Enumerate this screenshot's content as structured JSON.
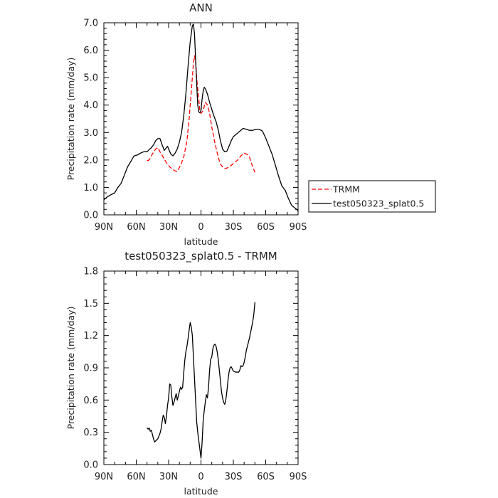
{
  "chart_data": [
    {
      "type": "line",
      "title": "ANN",
      "xlabel": "latitude",
      "ylabel": "Precipitation rate (mm/day)",
      "xlim": [
        90,
        -90
      ],
      "ylim": [
        0,
        7
      ],
      "x_ticks": [
        90,
        60,
        30,
        0,
        -30,
        -60,
        -90
      ],
      "x_tick_labels": [
        "90N",
        "60N",
        "30N",
        "0",
        "30S",
        "60S",
        "90S"
      ],
      "y_ticks": [
        0,
        1,
        2,
        3,
        4,
        5,
        6,
        7
      ],
      "y_tick_labels": [
        "0.0",
        "1.0",
        "2.0",
        "3.0",
        "4.0",
        "5.0",
        "6.0",
        "7.0"
      ],
      "grid": false,
      "legend_position": "right",
      "series": [
        {
          "name": "TRMM",
          "color": "#ff0000",
          "dashed": true,
          "points": [
            [
              50,
              1.97
            ],
            [
              48,
              2.0
            ],
            [
              45,
              2.22
            ],
            [
              42,
              2.4
            ],
            [
              40,
              2.45
            ],
            [
              38,
              2.3
            ],
            [
              35,
              2.1
            ],
            [
              32,
              1.9
            ],
            [
              29,
              1.75
            ],
            [
              26,
              1.65
            ],
            [
              24,
              1.6
            ],
            [
              22,
              1.58
            ],
            [
              19,
              1.8
            ],
            [
              16,
              2.1
            ],
            [
              13,
              2.7
            ],
            [
              11,
              3.5
            ],
            [
              9,
              4.5
            ],
            [
              7,
              5.5
            ],
            [
              6,
              5.8
            ],
            [
              5,
              5.6
            ],
            [
              4,
              5.0
            ],
            [
              2,
              4.2
            ],
            [
              1,
              3.8
            ],
            [
              0,
              3.7
            ],
            [
              -2,
              3.8
            ],
            [
              -4,
              4.1
            ],
            [
              -6,
              4.0
            ],
            [
              -8,
              3.7
            ],
            [
              -10,
              3.2
            ],
            [
              -13,
              2.6
            ],
            [
              -16,
              2.1
            ],
            [
              -18,
              1.85
            ],
            [
              -20,
              1.75
            ],
            [
              -22,
              1.68
            ],
            [
              -25,
              1.72
            ],
            [
              -28,
              1.8
            ],
            [
              -31,
              1.9
            ],
            [
              -34,
              2.0
            ],
            [
              -37,
              2.15
            ],
            [
              -40,
              2.25
            ],
            [
              -43,
              2.2
            ],
            [
              -45,
              2.1
            ],
            [
              -47,
              1.85
            ],
            [
              -50,
              1.55
            ]
          ]
        },
        {
          "name": "test050323_splat0.5",
          "color": "#000000",
          "dashed": false,
          "points": [
            [
              90,
              0.55
            ],
            [
              87,
              0.65
            ],
            [
              84,
              0.72
            ],
            [
              80,
              0.8
            ],
            [
              77,
              1.0
            ],
            [
              74,
              1.15
            ],
            [
              71,
              1.45
            ],
            [
              68,
              1.75
            ],
            [
              65,
              1.95
            ],
            [
              62,
              2.15
            ],
            [
              59,
              2.18
            ],
            [
              56,
              2.25
            ],
            [
              53,
              2.3
            ],
            [
              50,
              2.3
            ],
            [
              48,
              2.38
            ],
            [
              46,
              2.45
            ],
            [
              44,
              2.55
            ],
            [
              42,
              2.7
            ],
            [
              40,
              2.78
            ],
            [
              38,
              2.78
            ],
            [
              36,
              2.55
            ],
            [
              34,
              2.35
            ],
            [
              33,
              2.4
            ],
            [
              31,
              2.5
            ],
            [
              30,
              2.4
            ],
            [
              28,
              2.22
            ],
            [
              26,
              2.15
            ],
            [
              24,
              2.25
            ],
            [
              22,
              2.4
            ],
            [
              20,
              2.65
            ],
            [
              18,
              3.0
            ],
            [
              16,
              3.6
            ],
            [
              14,
              4.4
            ],
            [
              12,
              5.4
            ],
            [
              10,
              6.3
            ],
            [
              8,
              6.9
            ],
            [
              7,
              6.95
            ],
            [
              6,
              6.6
            ],
            [
              5,
              5.7
            ],
            [
              4,
              4.8
            ],
            [
              3,
              4.0
            ],
            [
              2,
              3.75
            ],
            [
              1,
              3.72
            ],
            [
              0,
              3.8
            ],
            [
              -1,
              4.2
            ],
            [
              -2,
              4.5
            ],
            [
              -3,
              4.65
            ],
            [
              -4,
              4.6
            ],
            [
              -6,
              4.4
            ],
            [
              -8,
              4.1
            ],
            [
              -10,
              3.85
            ],
            [
              -12,
              3.6
            ],
            [
              -14,
              3.4
            ],
            [
              -16,
              3.1
            ],
            [
              -18,
              2.7
            ],
            [
              -20,
              2.4
            ],
            [
              -22,
              2.3
            ],
            [
              -24,
              2.32
            ],
            [
              -26,
              2.5
            ],
            [
              -28,
              2.7
            ],
            [
              -30,
              2.85
            ],
            [
              -33,
              2.95
            ],
            [
              -36,
              3.05
            ],
            [
              -39,
              3.15
            ],
            [
              -42,
              3.12
            ],
            [
              -45,
              3.08
            ],
            [
              -48,
              3.08
            ],
            [
              -51,
              3.12
            ],
            [
              -54,
              3.12
            ],
            [
              -57,
              3.05
            ],
            [
              -60,
              2.8
            ],
            [
              -63,
              2.5
            ],
            [
              -66,
              2.2
            ],
            [
              -69,
              1.8
            ],
            [
              -72,
              1.4
            ],
            [
              -75,
              1.05
            ],
            [
              -78,
              0.9
            ],
            [
              -81,
              0.6
            ],
            [
              -84,
              0.35
            ],
            [
              -87,
              0.25
            ],
            [
              -88,
              0.22
            ],
            [
              -90,
              0.15
            ]
          ]
        }
      ]
    },
    {
      "type": "line",
      "title": "test050323_splat0.5 - TRMM",
      "xlabel": "latitude",
      "ylabel": "Precipitation rate (mm/day)",
      "xlim": [
        90,
        -90
      ],
      "ylim": [
        0,
        1.8
      ],
      "x_ticks": [
        90,
        60,
        30,
        0,
        -30,
        -60,
        -90
      ],
      "x_tick_labels": [
        "90N",
        "60N",
        "30N",
        "0",
        "30S",
        "60S",
        "90S"
      ],
      "y_ticks": [
        0,
        0.3,
        0.6,
        0.9,
        1.2,
        1.5,
        1.8
      ],
      "y_tick_labels": [
        "0.0",
        "0.3",
        "0.6",
        "0.9",
        "1.2",
        "1.5",
        "1.8"
      ],
      "grid": false,
      "series": [
        {
          "color": "#000000",
          "dashed": false,
          "points": [
            [
              50,
              0.34
            ],
            [
              49,
              0.33
            ],
            [
              48,
              0.34
            ],
            [
              47,
              0.31
            ],
            [
              46,
              0.32
            ],
            [
              45,
              0.28
            ],
            [
              44,
              0.24
            ],
            [
              43,
              0.21
            ],
            [
              42,
              0.22
            ],
            [
              40,
              0.24
            ],
            [
              38,
              0.29
            ],
            [
              37,
              0.33
            ],
            [
              36,
              0.4
            ],
            [
              35,
              0.46
            ],
            [
              34,
              0.44
            ],
            [
              33,
              0.38
            ],
            [
              32,
              0.45
            ],
            [
              31,
              0.55
            ],
            [
              30,
              0.62
            ],
            [
              29,
              0.75
            ],
            [
              28,
              0.74
            ],
            [
              27,
              0.63
            ],
            [
              26,
              0.55
            ],
            [
              25,
              0.58
            ],
            [
              24,
              0.62
            ],
            [
              23,
              0.66
            ],
            [
              22,
              0.6
            ],
            [
              21,
              0.64
            ],
            [
              20,
              0.68
            ],
            [
              19,
              0.72
            ],
            [
              18,
              0.7
            ],
            [
              17,
              0.72
            ],
            [
              16,
              0.85
            ],
            [
              15,
              0.97
            ],
            [
              14,
              1.05
            ],
            [
              13,
              1.1
            ],
            [
              12,
              1.17
            ],
            [
              11,
              1.25
            ],
            [
              10,
              1.32
            ],
            [
              9,
              1.28
            ],
            [
              8,
              1.2
            ],
            [
              7,
              1.0
            ],
            [
              6,
              0.8
            ],
            [
              5,
              0.6
            ],
            [
              4,
              0.4
            ],
            [
              3,
              0.3
            ],
            [
              2,
              0.22
            ],
            [
              1,
              0.14
            ],
            [
              0,
              0.06
            ],
            [
              -1,
              0.2
            ],
            [
              -2,
              0.4
            ],
            [
              -3,
              0.5
            ],
            [
              -4,
              0.58
            ],
            [
              -5,
              0.65
            ],
            [
              -6,
              0.62
            ],
            [
              -7,
              0.72
            ],
            [
              -8,
              0.88
            ],
            [
              -9,
              0.98
            ],
            [
              -10,
              1.0
            ],
            [
              -11,
              1.08
            ],
            [
              -12,
              1.11
            ],
            [
              -13,
              1.12
            ],
            [
              -14,
              1.1
            ],
            [
              -15,
              1.05
            ],
            [
              -16,
              0.98
            ],
            [
              -17,
              0.88
            ],
            [
              -18,
              0.78
            ],
            [
              -19,
              0.68
            ],
            [
              -20,
              0.62
            ],
            [
              -21,
              0.58
            ],
            [
              -22,
              0.56
            ],
            [
              -23,
              0.6
            ],
            [
              -24,
              0.68
            ],
            [
              -25,
              0.78
            ],
            [
              -26,
              0.86
            ],
            [
              -27,
              0.9
            ],
            [
              -28,
              0.91
            ],
            [
              -29,
              0.89
            ],
            [
              -30,
              0.87
            ],
            [
              -32,
              0.86
            ],
            [
              -34,
              0.86
            ],
            [
              -35,
              0.86
            ],
            [
              -36,
              0.88
            ],
            [
              -37,
              0.92
            ],
            [
              -38,
              0.91
            ],
            [
              -39,
              0.92
            ],
            [
              -40,
              0.95
            ],
            [
              -41,
              1.0
            ],
            [
              -42,
              1.06
            ],
            [
              -43,
              1.1
            ],
            [
              -44,
              1.14
            ],
            [
              -45,
              1.18
            ],
            [
              -46,
              1.23
            ],
            [
              -47,
              1.28
            ],
            [
              -48,
              1.33
            ],
            [
              -49,
              1.4
            ],
            [
              -50,
              1.51
            ]
          ]
        }
      ]
    }
  ]
}
